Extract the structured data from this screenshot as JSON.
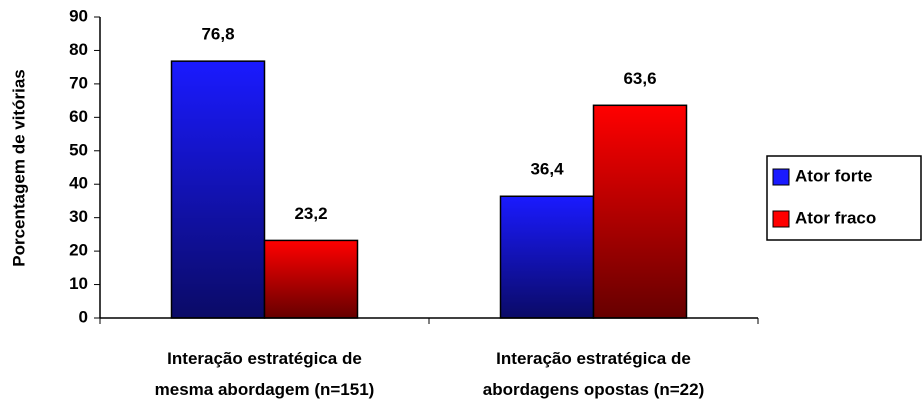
{
  "chart_data": {
    "type": "bar",
    "y_label": "Porcentagem de vitórias",
    "categories": [
      "Interação estratégica de\nmesma abordagem (n=151)",
      "Interação estratégica de\nabordagens opostas (n=22)"
    ],
    "series": [
      {
        "name": "Ator forte",
        "color": "#1a1aff",
        "values": [
          76.8,
          36.4
        ],
        "value_labels": [
          "76,8",
          "36,4"
        ]
      },
      {
        "name": "Ator fraco",
        "color": "#ff0000",
        "values": [
          23.2,
          63.6
        ],
        "value_labels": [
          "23,2",
          "63,6"
        ]
      }
    ],
    "ylim": [
      0,
      90
    ],
    "yticks": [
      0,
      10,
      20,
      30,
      40,
      50,
      60,
      70,
      80,
      90
    ],
    "legend": "right"
  }
}
